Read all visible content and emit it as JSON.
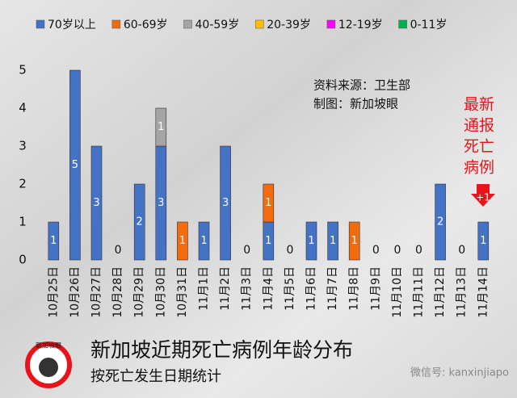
{
  "chart_data": {
    "type": "stacked_bar",
    "title": "新加坡近期死亡病例年龄分布",
    "subtitle": "按死亡发生日期统计",
    "source": "资料来源：卫生部",
    "credit": "制图：新加坡眼",
    "annotation_lines": [
      "最新",
      "通报",
      "死亡",
      "病例"
    ],
    "arrow_label": "+1",
    "logo_text": "新加坡眼",
    "watermark": "微信号: kanxinjiapo",
    "categories": [
      "10月25日",
      "10月26日",
      "10月27日",
      "10月28日",
      "10月29日",
      "10月30日",
      "10月31日",
      "11月1日",
      "11月2日",
      "11月3日",
      "11月4日",
      "11月5日",
      "11月6日",
      "11月7日",
      "11月8日",
      "11月9日",
      "11月10日",
      "11月11日",
      "11月12日",
      "11月13日",
      "11月14日"
    ],
    "series": [
      {
        "name": "70岁以上",
        "color": "#4472c4",
        "values": [
          1,
          5,
          3,
          0,
          2,
          3,
          0,
          1,
          3,
          0,
          1,
          0,
          1,
          1,
          0,
          0,
          0,
          0,
          2,
          0,
          1
        ]
      },
      {
        "name": "60-69岁",
        "color": "#f26b0f",
        "values": [
          0,
          0,
          0,
          0,
          0,
          0,
          1,
          0,
          0,
          0,
          1,
          0,
          0,
          0,
          1,
          0,
          0,
          0,
          0,
          0,
          0
        ]
      },
      {
        "name": "40-59岁",
        "color": "#a5a5a5",
        "values": [
          0,
          0,
          0,
          0,
          0,
          1,
          0,
          0,
          0,
          0,
          0,
          0,
          0,
          0,
          0,
          0,
          0,
          0,
          0,
          0,
          0
        ]
      },
      {
        "name": "20-39岁",
        "color": "#ffc000",
        "values": [
          0,
          0,
          0,
          0,
          0,
          0,
          0,
          0,
          0,
          0,
          0,
          0,
          0,
          0,
          0,
          0,
          0,
          0,
          0,
          0,
          0
        ]
      },
      {
        "name": "12-19岁",
        "color": "#ff00ff",
        "values": [
          0,
          0,
          0,
          0,
          0,
          0,
          0,
          0,
          0,
          0,
          0,
          0,
          0,
          0,
          0,
          0,
          0,
          0,
          0,
          0,
          0
        ]
      },
      {
        "name": "0-11岁",
        "color": "#00b050",
        "values": [
          0,
          0,
          0,
          0,
          0,
          0,
          0,
          0,
          0,
          0,
          0,
          0,
          0,
          0,
          0,
          0,
          0,
          0,
          0,
          0,
          0
        ]
      }
    ],
    "ylim": [
      0,
      5
    ],
    "yticks": [
      0,
      1,
      2,
      3,
      4,
      5
    ]
  }
}
